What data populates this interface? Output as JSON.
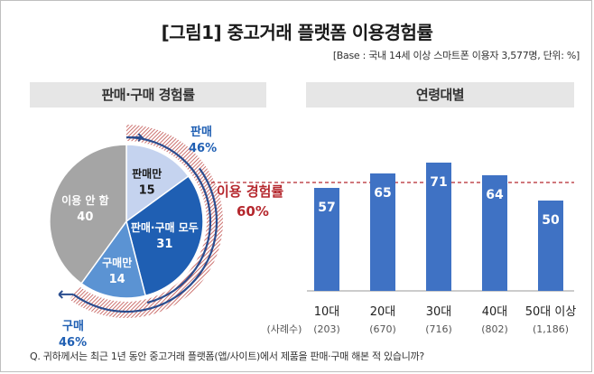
{
  "title": "[그림1] 중고거래 플랫폼 이용경험률",
  "base_note": "[Base : 국내 14세 이상 스마트폰 이용자 3,577명, 단위: %]",
  "left_panel": {
    "heading": "판매·구매 경험률"
  },
  "right_panel": {
    "heading": "연령대별",
    "sample_label": "(사례수)"
  },
  "question": "Q. 귀하께서는 최근 1년 동안 중고거래 플랫폼(앱/사이트)에서 제품을 판매·구매 해본 적 있습니까?",
  "colors": {
    "none": "#a5a5a5",
    "sell_only": "#c5d3ef",
    "both": "#1f5fb3",
    "buy_only": "#5b93d3",
    "bar": "#3f72c4",
    "usage_line": "#b5282e",
    "hatch": "#c0504d"
  },
  "chart_data": [
    {
      "type": "pie",
      "slices": [
        {
          "label": "판매만",
          "value": 15,
          "value_text": "15"
        },
        {
          "label": "판매·구매 모두",
          "value": 31,
          "value_text": "31"
        },
        {
          "label": "구매만",
          "value": 14,
          "value_text": "14"
        },
        {
          "label": "이용 안 함",
          "value": 40,
          "value_text": "40"
        }
      ],
      "annotations": {
        "sell": {
          "label": "판매",
          "value": "46%"
        },
        "buy": {
          "label": "구매",
          "value": "46%"
        },
        "usage": {
          "label": "이용 경험률",
          "value": "60%"
        }
      }
    },
    {
      "type": "bar",
      "categories": [
        "10대",
        "20대",
        "30대",
        "40대",
        "50대 이상"
      ],
      "values": [
        57,
        65,
        71,
        64,
        50
      ],
      "sample_sizes": [
        "(203)",
        "(670)",
        "(716)",
        "(802)",
        "(1,186)"
      ],
      "reference_line": 60
    }
  ]
}
